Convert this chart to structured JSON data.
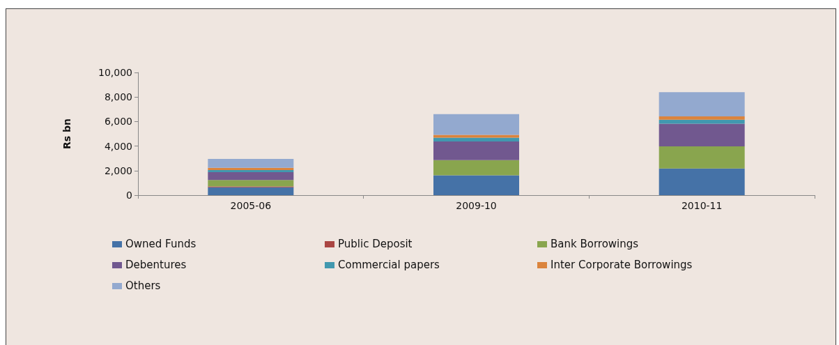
{
  "chart_data": {
    "type": "bar",
    "stacked": true,
    "ylabel": "Rs bn",
    "categories": [
      "2005-06",
      "2009-10",
      "2010-11"
    ],
    "series": [
      {
        "name": "Owned Funds",
        "color": "#4572a7",
        "values": [
          640,
          1620,
          2180
        ]
      },
      {
        "name": "Public Deposit",
        "color": "#aa4643",
        "values": [
          70,
          null,
          null
        ]
      },
      {
        "name": "Bank Borrowings",
        "color": "#89a54e",
        "values": [
          530,
          1230,
          1800
        ]
      },
      {
        "name": "Debentures",
        "color": "#71588f",
        "values": [
          630,
          1520,
          1850
        ]
      },
      {
        "name": "Commercial papers",
        "color": "#4198af",
        "values": [
          170,
          320,
          320
        ]
      },
      {
        "name": "Inter Corporate Borrowings",
        "color": "#db843d",
        "values": [
          190,
          230,
          270
        ]
      },
      {
        "name": "Others",
        "color": "#93a9cf",
        "values": [
          720,
          1690,
          1970
        ]
      }
    ],
    "ylim": [
      0,
      10000
    ],
    "yticks": [
      0,
      {
        "value": 2000,
        "label": "2,000"
      },
      {
        "value": 4000,
        "label": "4,000"
      },
      {
        "value": 6000,
        "label": "6,000"
      },
      {
        "value": 8000,
        "label": "8,000"
      },
      {
        "value": 10000,
        "label": "10,000"
      }
    ],
    "grid": false,
    "legend": "bottom"
  }
}
